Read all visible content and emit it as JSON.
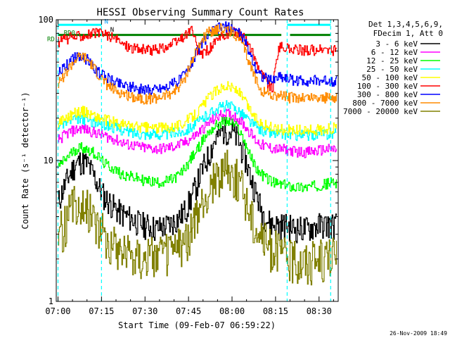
{
  "chart_data": {
    "type": "line",
    "title": "HESSI Observing Summary Count Rates",
    "xlabel": "Start Time (09-Feb-07 06:59:22)",
    "ylabel": "Count Rate (s⁻¹ detector⁻¹)",
    "y_scale": "log",
    "ylim": [
      1,
      100
    ],
    "xlim": [
      "07:00",
      "08:36"
    ],
    "x_tick_labels": [
      "07:00",
      "07:15",
      "07:30",
      "07:45",
      "08:00",
      "08:15",
      "08:30"
    ],
    "y_tick_labels": [
      "1",
      "10",
      "100"
    ],
    "legend": {
      "placement": "right",
      "header": [
        "Det 1,3,4,5,6,9,",
        "FDecim 1, Att 0"
      ]
    },
    "x": [
      "07:00",
      "07:02",
      "07:04",
      "07:06",
      "07:08",
      "07:10",
      "07:12",
      "07:14",
      "07:16",
      "07:18",
      "07:20",
      "07:22",
      "07:24",
      "07:26",
      "07:28",
      "07:30",
      "07:32",
      "07:34",
      "07:36",
      "07:38",
      "07:40",
      "07:42",
      "07:44",
      "07:46",
      "07:48",
      "07:50",
      "07:52",
      "07:54",
      "07:56",
      "07:58",
      "08:00",
      "08:02",
      "08:04",
      "08:06",
      "08:08",
      "08:10",
      "08:12",
      "08:14",
      "08:16",
      "08:18",
      "08:20",
      "08:22",
      "08:24",
      "08:26",
      "08:28",
      "08:30",
      "08:32",
      "08:34"
    ],
    "series": [
      {
        "name": "3 - 6 keV",
        "color": "#000000",
        "values": [
          5,
          6.5,
          8,
          9.5,
          10,
          9.5,
          8,
          6.5,
          5.5,
          5,
          4.5,
          4.2,
          4,
          3.8,
          3.6,
          3.5,
          3.4,
          3.3,
          3.4,
          3.5,
          3.7,
          4,
          4.5,
          5.5,
          7,
          9,
          11,
          14,
          16,
          16.5,
          16,
          14,
          11,
          8,
          6,
          4.5,
          3.8,
          3.5,
          3.5,
          3.5,
          3.4,
          3.3,
          3.3,
          3.3,
          3.4,
          3.5,
          3.5,
          3.5
        ]
      },
      {
        "name": "6 - 12 keV",
        "color": "#ff00ff",
        "values": [
          14,
          15,
          16,
          16.5,
          17,
          16.5,
          16,
          15.5,
          15,
          14.5,
          14,
          13.5,
          13,
          12.8,
          12.5,
          12.3,
          12.2,
          12.1,
          12.2,
          12.4,
          12.6,
          13,
          13.5,
          14.5,
          15.5,
          17,
          18.5,
          20,
          21,
          21.5,
          21,
          20,
          18,
          16,
          14,
          13,
          12.5,
          12.2,
          12,
          12,
          11.8,
          11.6,
          11.5,
          11.5,
          11.6,
          11.8,
          12,
          12
        ]
      },
      {
        "name": "12 - 25 keV",
        "color": "#00ff00",
        "values": [
          9,
          10,
          11,
          12,
          12.5,
          12,
          11.5,
          10.5,
          9.5,
          9,
          8.5,
          8,
          7.8,
          7.6,
          7.4,
          7.2,
          7.1,
          7,
          7.1,
          7.2,
          7.5,
          8,
          9,
          10.5,
          12,
          14,
          16,
          17.5,
          18.5,
          19,
          18.5,
          17,
          14,
          11,
          9,
          8,
          7.5,
          7,
          6.8,
          6.7,
          6.6,
          6.5,
          6.5,
          6.5,
          6.6,
          6.7,
          6.8,
          7
        ]
      },
      {
        "name": "25 - 50 keV",
        "color": "#00ffff",
        "values": [
          18,
          18.5,
          19,
          19.5,
          19.8,
          19.5,
          19,
          18.5,
          18,
          17.5,
          17,
          16.5,
          16,
          15.8,
          15.6,
          15.5,
          15.4,
          15.3,
          15.4,
          15.5,
          15.7,
          16,
          16.5,
          17.5,
          18.5,
          20,
          21.5,
          23,
          24,
          24.5,
          24,
          23,
          21,
          19,
          17.5,
          16.5,
          16,
          15.7,
          15.5,
          15.4,
          15.3,
          15.2,
          15.2,
          15.2,
          15.3,
          15.4,
          15.5,
          15.5
        ]
      },
      {
        "name": "50 - 100 keV",
        "color": "#ffff00",
        "values": [
          19,
          20,
          21,
          22,
          22.5,
          22,
          21,
          20,
          19.5,
          19,
          18.5,
          18,
          17.8,
          17.5,
          17.3,
          17.2,
          17.1,
          17,
          17.1,
          17.3,
          17.6,
          18,
          19,
          20.5,
          22,
          25,
          28,
          31,
          33,
          34,
          33,
          31,
          27,
          23,
          20,
          18.5,
          17.5,
          17,
          16.8,
          16.6,
          16.5,
          16.4,
          16.4,
          16.4,
          16.5,
          16.6,
          16.7,
          17
        ]
      },
      {
        "name": "100 - 300 keV",
        "color": "#ff0000",
        "values": [
          70,
          72,
          74,
          76,
          78,
          79,
          80,
          80,
          80,
          76,
          72,
          68,
          65,
          63,
          62,
          61,
          61,
          62,
          63,
          65,
          68,
          72,
          78,
          86,
          60,
          58,
          62,
          68,
          74,
          79,
          82,
          80,
          74,
          64,
          52,
          42,
          36,
          32,
          64,
          63,
          62,
          61,
          61,
          61,
          61,
          61,
          61,
          61
        ]
      },
      {
        "name": "300 - 800 keV",
        "color": "#0000ff",
        "values": [
          42,
          46,
          50,
          54,
          55,
          52,
          46,
          42,
          40,
          38,
          36,
          35,
          34,
          33,
          32.5,
          32,
          32,
          32.5,
          33,
          34,
          35.5,
          38,
          42,
          50,
          60,
          70,
          78,
          85,
          88,
          89,
          87,
          82,
          72,
          58,
          46,
          40,
          38,
          37,
          40,
          39,
          38,
          37,
          37,
          37,
          37,
          37,
          37,
          37
        ]
      },
      {
        "name": "800 - 7000 keV",
        "color": "#ff8c00",
        "values": [
          36,
          40,
          46,
          52,
          55,
          52,
          46,
          40,
          36,
          33,
          31,
          30,
          29,
          28.5,
          28,
          27.5,
          27.5,
          28,
          28.5,
          29.5,
          31,
          34,
          40,
          50,
          62,
          74,
          82,
          86,
          87,
          85,
          82,
          75,
          62,
          48,
          38,
          32,
          30,
          29,
          29,
          28.5,
          28,
          28,
          28,
          28,
          28,
          28,
          28,
          28
        ]
      },
      {
        "name": "7000 - 20000 keV",
        "color": "#808000",
        "values": [
          3,
          3.5,
          4.5,
          5,
          5,
          4.8,
          4.2,
          3.5,
          3,
          2.7,
          2.5,
          2.4,
          2.3,
          2.2,
          2.2,
          2.1,
          2.1,
          2.2,
          2.2,
          2.3,
          2.4,
          2.5,
          2.8,
          3.3,
          4,
          5,
          6,
          7.5,
          8.5,
          9,
          8.5,
          7.5,
          6,
          4.5,
          3.5,
          3,
          2.6,
          2.4,
          2.3,
          2.2,
          2.1,
          2,
          2,
          2,
          2,
          2,
          2.1,
          2.1
        ]
      }
    ],
    "annotations": {
      "rd0_labels": [
        "RD0",
        "RD"
      ],
      "n_markers": [
        "N",
        "N"
      ],
      "dashed_lines_x": [
        "07:00",
        "07:15",
        "08:19",
        "08:34"
      ],
      "cyan_bar_segments": [
        [
          "07:00",
          "07:15"
        ],
        [
          "08:19",
          "08:34"
        ]
      ],
      "green_bar_segments": [
        [
          "07:00",
          "07:18"
        ],
        [
          "07:18",
          "07:58"
        ],
        [
          "07:58",
          "08:17"
        ],
        [
          "08:20",
          "08:34"
        ]
      ]
    },
    "grid": false
  },
  "footer": {
    "date_stamp": "26-Nov-2009 18:49"
  }
}
